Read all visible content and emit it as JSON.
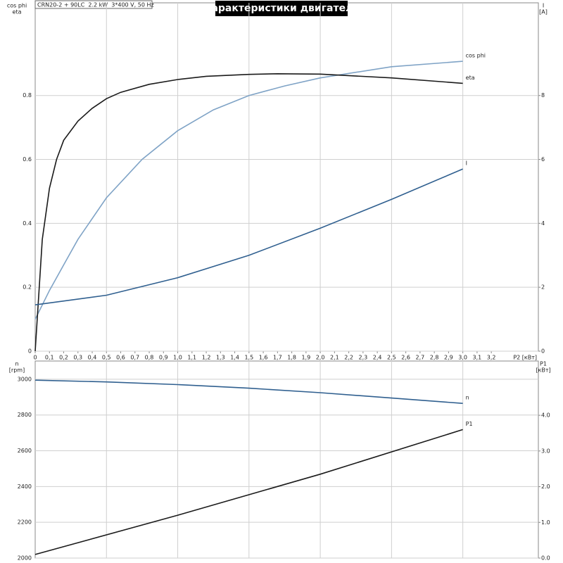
{
  "chart_data": [
    {
      "type": "line",
      "title": "Характеристики двигателя",
      "subtitle": "CRN20-2 + 90LC  2.2 kW  3*400 V, 50 Hz",
      "ylabel": [
        "cos phi",
        "eta"
      ],
      "y2label": [
        "I",
        "[A]"
      ],
      "xlabel": "P2 [кВт]",
      "xlim": [
        0,
        3.53
      ],
      "xticks": [
        0,
        {
          "value": 0.1,
          "label": "0,1"
        },
        {
          "value": 0.2,
          "label": "0,2"
        },
        {
          "value": 0.3,
          "label": "0,3"
        },
        {
          "value": 0.4,
          "label": "0,4"
        },
        {
          "value": 0.5,
          "label": "0,5"
        },
        {
          "value": 0.6,
          "label": "0,6"
        },
        {
          "value": 0.7,
          "label": "0,7"
        },
        {
          "value": 0.8,
          "label": "0,8"
        },
        {
          "value": 0.9,
          "label": "0,9"
        },
        {
          "value": 1.0,
          "label": "1,0"
        },
        {
          "value": 1.1,
          "label": "1,1"
        },
        {
          "value": 1.2,
          "label": "1,2"
        },
        {
          "value": 1.3,
          "label": "1,3"
        },
        {
          "value": 1.4,
          "label": "1,4"
        },
        {
          "value": 1.5,
          "label": "1,5"
        },
        {
          "value": 1.6,
          "label": "1,6"
        },
        {
          "value": 1.7,
          "label": "1,7"
        },
        {
          "value": 1.8,
          "label": "1,8"
        },
        {
          "value": 1.9,
          "label": "1,9"
        },
        {
          "value": 2.0,
          "label": "2,0"
        },
        {
          "value": 2.1,
          "label": "2,1"
        },
        {
          "value": 2.2,
          "label": "2,2"
        },
        {
          "value": 2.3,
          "label": "2,3"
        },
        {
          "value": 2.4,
          "label": "2,4"
        },
        {
          "value": 2.5,
          "label": "2,5"
        },
        {
          "value": 2.6,
          "label": "2,6"
        },
        {
          "value": 2.7,
          "label": "2,7"
        },
        {
          "value": 2.8,
          "label": "2,8"
        },
        {
          "value": 2.9,
          "label": "2,9"
        },
        {
          "value": 3.0,
          "label": "3,0"
        },
        {
          "value": 3.1,
          "label": "3,1"
        },
        {
          "value": 3.2,
          "label": "3,2"
        }
      ],
      "ylim": [
        0,
        1.09
      ],
      "yticks": [
        0,
        0.2,
        0.4,
        0.6,
        0.8
      ],
      "y2lim": [
        0,
        10.9
      ],
      "y2ticks": [
        0,
        2,
        4,
        6,
        8
      ],
      "grid": true,
      "series": [
        {
          "name": "cos phi",
          "color": "#7fa3c6",
          "x": [
            0,
            0.1,
            0.2,
            0.3,
            0.5,
            0.75,
            1.0,
            1.25,
            1.5,
            1.75,
            2.0,
            2.5,
            3.0
          ],
          "values": [
            0.1,
            0.19,
            0.27,
            0.35,
            0.48,
            0.6,
            0.69,
            0.755,
            0.8,
            0.83,
            0.855,
            0.89,
            0.907
          ]
        },
        {
          "name": "eta",
          "color": "#1a1a1a",
          "x": [
            0,
            0.05,
            0.1,
            0.15,
            0.2,
            0.3,
            0.4,
            0.5,
            0.6,
            0.8,
            1.0,
            1.2,
            1.5,
            1.7,
            2.0,
            2.5,
            3.0
          ],
          "values": [
            0,
            0.35,
            0.51,
            0.6,
            0.66,
            0.72,
            0.76,
            0.79,
            0.81,
            0.835,
            0.85,
            0.86,
            0.866,
            0.868,
            0.867,
            0.855,
            0.838
          ]
        },
        {
          "name": "I",
          "color": "#2f5f8f",
          "axis": "y2",
          "x": [
            0,
            0.5,
            1.0,
            1.5,
            2.0,
            2.5,
            3.0
          ],
          "values": [
            1.45,
            1.75,
            2.3,
            3.0,
            3.85,
            4.75,
            5.7
          ]
        }
      ]
    },
    {
      "type": "line",
      "ylabel": [
        "n",
        "[rpm]"
      ],
      "y2label": [
        "P1",
        "[кВт]"
      ],
      "xlim": [
        0,
        3.53
      ],
      "ylim": [
        2000,
        3102
      ],
      "yticks": [
        2000,
        2200,
        2400,
        2600,
        2800,
        3000
      ],
      "y2lim": [
        0,
        5.52
      ],
      "y2ticks": [
        {
          "value": 0,
          "label": "0.0"
        },
        {
          "value": 1,
          "label": "1.0"
        },
        {
          "value": 2,
          "label": "2.0"
        },
        {
          "value": 3,
          "label": "3.0"
        },
        {
          "value": 4,
          "label": "4.0"
        }
      ],
      "grid": true,
      "series": [
        {
          "name": "n",
          "color": "#2f5f8f",
          "x": [
            0,
            0.5,
            1.0,
            1.5,
            2.0,
            2.5,
            3.0
          ],
          "values": [
            2995,
            2985,
            2970,
            2950,
            2925,
            2895,
            2865
          ]
        },
        {
          "name": "P1",
          "color": "#1a1a1a",
          "axis": "y2",
          "x": [
            0,
            1.0,
            2.0,
            3.0
          ],
          "values": [
            0.1,
            1.2,
            2.35,
            3.6
          ]
        }
      ]
    }
  ]
}
